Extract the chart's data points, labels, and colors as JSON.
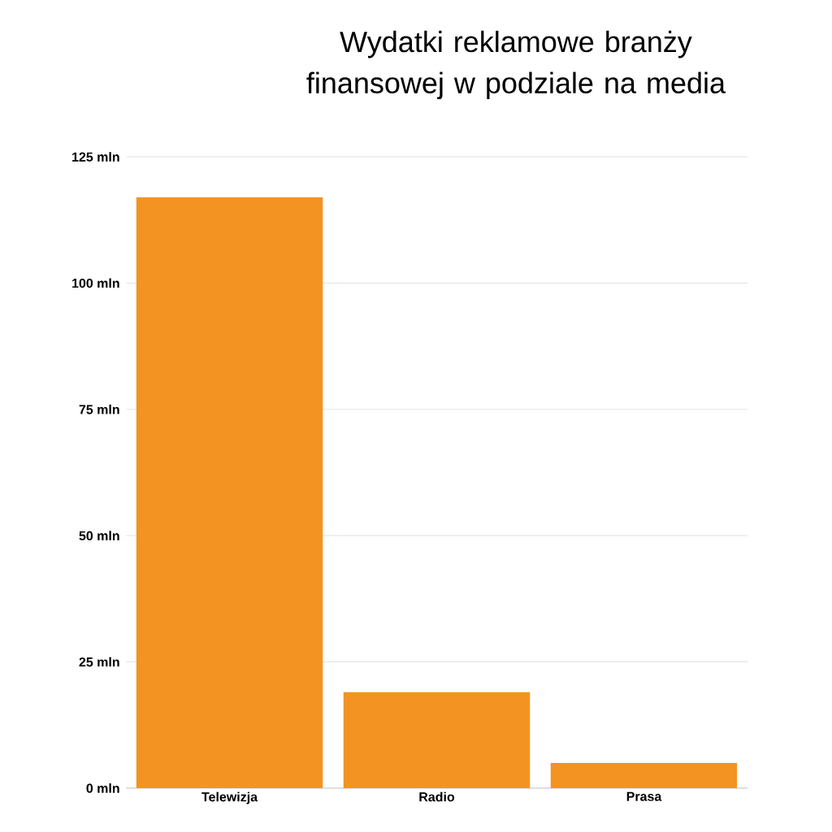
{
  "chart_data": {
    "type": "bar",
    "title": "Wydatki reklamowe branży finansowej w podziale na media",
    "categories": [
      "Telewizja",
      "Radio",
      "Prasa"
    ],
    "values": [
      117,
      19,
      5
    ],
    "color": "#f39322",
    "ylim": [
      0,
      125
    ],
    "yticks": [
      {
        "value": 0,
        "label": "0 mln"
      },
      {
        "value": 25,
        "label": "25 mln"
      },
      {
        "value": 50,
        "label": "50 mln"
      },
      {
        "value": 75,
        "label": "75 mln"
      },
      {
        "value": 100,
        "label": "100 mln"
      },
      {
        "value": 125,
        "label": "125 mln"
      }
    ],
    "grid": "y"
  }
}
